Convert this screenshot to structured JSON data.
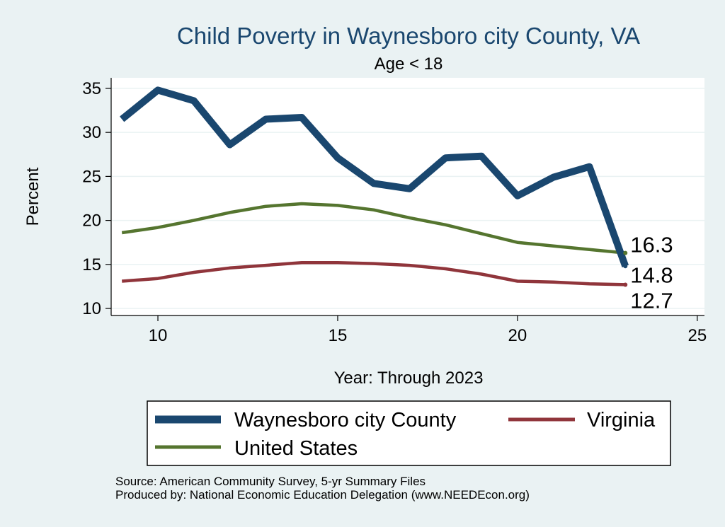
{
  "chart_data": {
    "type": "line",
    "title": "Child Poverty in Waynesboro city County, VA",
    "subtitle": "Age < 18",
    "xlabel": "Year: Through 2023",
    "ylabel": "Percent",
    "xlim": [
      8.7,
      25.2
    ],
    "ylim": [
      9.2,
      36.2
    ],
    "xticks": [
      10,
      15,
      20,
      25
    ],
    "yticks": [
      10,
      15,
      20,
      25,
      30,
      35
    ],
    "grid": true,
    "legend_position": "bottom",
    "series": [
      {
        "name": "Waynesboro city County",
        "color": "#1a476f",
        "x": [
          9,
          10,
          11,
          12,
          13,
          14,
          15,
          16,
          17,
          18,
          19,
          20,
          21,
          22,
          23
        ],
        "values": [
          31.5,
          34.8,
          33.6,
          28.6,
          31.5,
          31.7,
          27.1,
          24.2,
          23.6,
          27.1,
          27.3,
          22.8,
          24.9,
          26.1,
          14.8
        ],
        "end_label": "14.8"
      },
      {
        "name": "Virginia",
        "color": "#90353b",
        "x": [
          9,
          10,
          11,
          12,
          13,
          14,
          15,
          16,
          17,
          18,
          19,
          20,
          21,
          22,
          23
        ],
        "values": [
          13.1,
          13.4,
          14.1,
          14.6,
          14.9,
          15.2,
          15.2,
          15.1,
          14.9,
          14.5,
          13.9,
          13.1,
          13.0,
          12.8,
          12.7
        ],
        "end_label": "12.7"
      },
      {
        "name": "United States",
        "color": "#55752f",
        "x": [
          9,
          10,
          11,
          12,
          13,
          14,
          15,
          16,
          17,
          18,
          19,
          20,
          21,
          22,
          23
        ],
        "values": [
          18.6,
          19.2,
          20.0,
          20.9,
          21.6,
          21.9,
          21.7,
          21.2,
          20.3,
          19.5,
          18.5,
          17.5,
          17.1,
          16.7,
          16.3
        ],
        "end_label": "16.3"
      }
    ],
    "notes": [
      "Source: American Community Survey, 5-yr Summary Files",
      "Produced by: National Economic Education Delegation (www.NEEDEcon.org)"
    ]
  }
}
